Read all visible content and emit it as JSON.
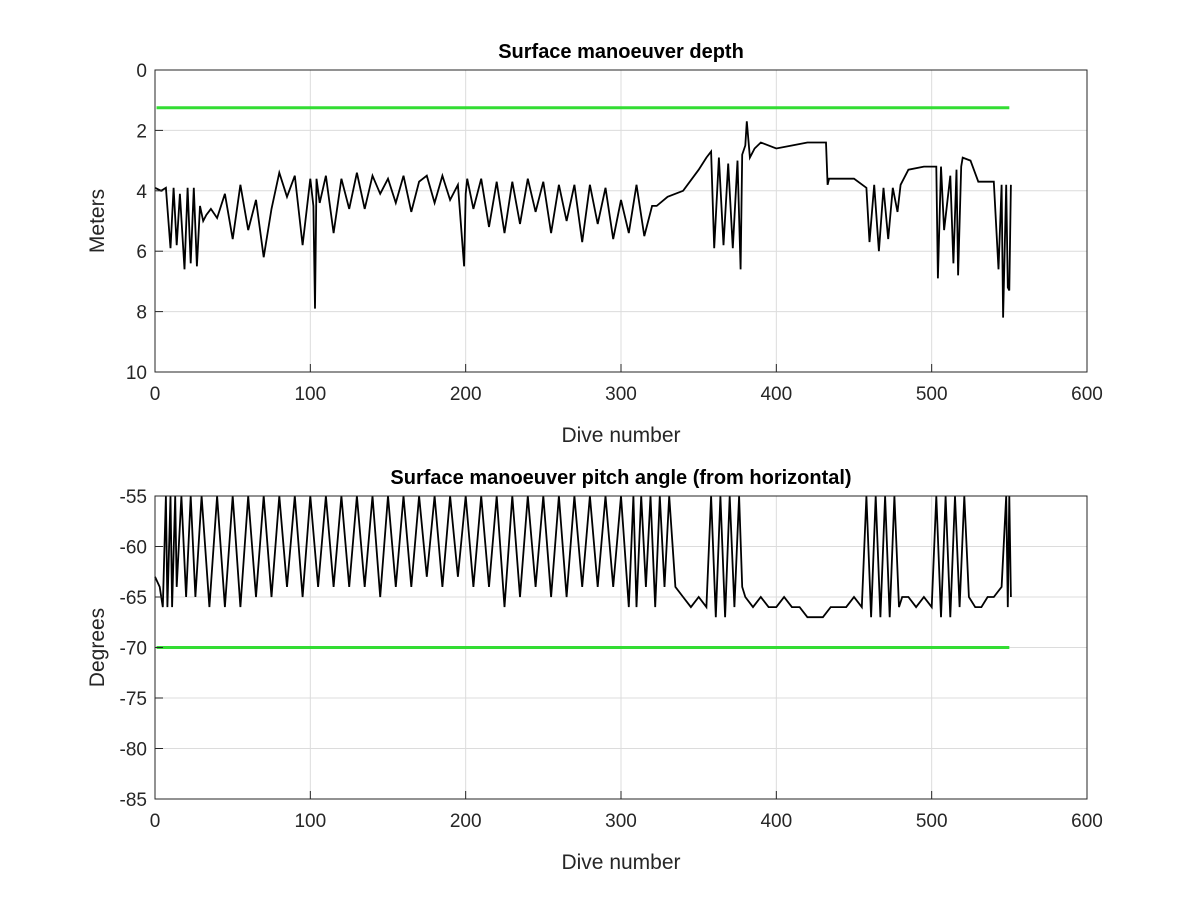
{
  "chart_data": [
    {
      "type": "line",
      "title": "Surface manoeuver depth",
      "xlabel": "Dive number",
      "ylabel": "Meters",
      "xlim": [
        0,
        600
      ],
      "ylim": [
        0,
        10
      ],
      "y_reversed": true,
      "grid": true,
      "x_ticks": [
        "0",
        "100",
        "200",
        "300",
        "400",
        "500",
        "600"
      ],
      "y_ticks": [
        "0",
        "2",
        "4",
        "6",
        "8",
        "10"
      ],
      "threshold": {
        "value": 1.25,
        "x_range": [
          1,
          550
        ],
        "color": "#33dd33"
      },
      "series": [
        {
          "color": "#000000",
          "x": [
            0,
            4,
            7,
            10,
            12,
            14,
            16,
            19,
            21,
            23,
            25,
            27,
            29,
            31,
            33,
            36,
            40,
            45,
            50,
            55,
            60,
            65,
            70,
            75,
            80,
            85,
            90,
            95,
            100,
            102,
            103,
            104,
            106,
            110,
            115,
            120,
            125,
            130,
            135,
            140,
            145,
            150,
            155,
            160,
            165,
            170,
            175,
            180,
            185,
            190,
            195,
            199,
            200,
            201,
            205,
            210,
            215,
            220,
            225,
            230,
            235,
            240,
            245,
            250,
            255,
            260,
            265,
            270,
            275,
            280,
            285,
            290,
            295,
            300,
            305,
            310,
            315,
            320,
            323,
            330,
            340,
            350,
            355,
            358,
            360,
            363,
            366,
            369,
            372,
            375,
            377,
            378,
            380,
            381,
            383,
            386,
            390,
            400,
            410,
            420,
            432,
            433,
            434,
            440,
            450,
            458,
            460,
            463,
            466,
            469,
            472,
            475,
            478,
            480,
            485,
            495,
            503,
            504,
            506,
            508,
            512,
            514,
            516,
            517,
            519,
            520,
            525,
            530,
            535,
            540,
            543,
            545,
            546,
            548,
            549,
            550,
            551
          ],
          "y": [
            3.9,
            4.0,
            3.9,
            5.9,
            3.9,
            5.8,
            4.1,
            6.6,
            3.9,
            6.4,
            3.9,
            6.5,
            4.5,
            5.0,
            4.8,
            4.6,
            4.9,
            4.1,
            5.6,
            3.8,
            5.3,
            4.3,
            6.2,
            4.6,
            3.4,
            4.2,
            3.5,
            5.8,
            3.6,
            4.5,
            7.9,
            3.6,
            4.4,
            3.5,
            5.4,
            3.6,
            4.6,
            3.4,
            4.6,
            3.5,
            4.1,
            3.6,
            4.4,
            3.5,
            4.7,
            3.7,
            3.5,
            4.4,
            3.5,
            4.3,
            3.8,
            6.5,
            4.1,
            3.6,
            4.6,
            3.6,
            5.2,
            3.7,
            5.4,
            3.7,
            5.1,
            3.6,
            4.7,
            3.7,
            5.4,
            3.8,
            5.0,
            3.8,
            5.7,
            3.8,
            5.1,
            3.9,
            5.6,
            4.3,
            5.4,
            3.8,
            5.5,
            4.5,
            4.5,
            4.2,
            4.0,
            3.3,
            2.9,
            2.7,
            5.9,
            2.9,
            5.8,
            3.1,
            5.9,
            3.0,
            6.6,
            2.8,
            2.5,
            1.7,
            2.9,
            2.6,
            2.4,
            2.6,
            2.5,
            2.4,
            2.4,
            3.8,
            3.6,
            3.6,
            3.6,
            3.9,
            5.7,
            3.8,
            6.0,
            3.9,
            5.6,
            3.9,
            4.7,
            3.8,
            3.3,
            3.2,
            3.2,
            6.9,
            3.2,
            5.3,
            3.5,
            6.4,
            3.3,
            6.8,
            3.2,
            2.9,
            3.0,
            3.7,
            3.7,
            3.7,
            6.6,
            3.8,
            8.2,
            3.8,
            7.2,
            7.3,
            3.8
          ]
        }
      ]
    },
    {
      "type": "line",
      "title": "Surface manoeuver pitch angle (from horizontal)",
      "xlabel": "Dive number",
      "ylabel": "Degrees",
      "xlim": [
        0,
        600
      ],
      "ylim": [
        -85,
        -55
      ],
      "grid": true,
      "x_ticks": [
        "0",
        "100",
        "200",
        "300",
        "400",
        "500",
        "600"
      ],
      "y_ticks": [
        "-55",
        "-60",
        "-65",
        "-70",
        "-75",
        "-80",
        "-85"
      ],
      "threshold": {
        "value": -70,
        "x_range": [
          1,
          550
        ],
        "color": "#33dd33"
      },
      "series": [
        {
          "color": "#000000",
          "x": [
            0,
            3,
            5,
            7,
            8,
            10,
            11,
            13,
            14,
            17,
            20,
            23,
            26,
            30,
            35,
            40,
            45,
            50,
            55,
            60,
            65,
            70,
            75,
            80,
            85,
            90,
            95,
            100,
            105,
            110,
            115,
            120,
            125,
            130,
            135,
            140,
            145,
            150,
            155,
            160,
            165,
            170,
            175,
            180,
            185,
            190,
            195,
            200,
            205,
            210,
            215,
            220,
            225,
            230,
            235,
            240,
            245,
            250,
            255,
            260,
            265,
            270,
            275,
            280,
            285,
            290,
            295,
            300,
            305,
            308,
            310,
            313,
            316,
            319,
            322,
            325,
            328,
            331,
            335,
            340,
            345,
            350,
            355,
            358,
            361,
            364,
            367,
            370,
            373,
            376,
            378,
            380,
            385,
            390,
            395,
            400,
            405,
            410,
            415,
            420,
            425,
            430,
            435,
            440,
            445,
            450,
            455,
            458,
            461,
            464,
            467,
            470,
            473,
            476,
            479,
            481,
            485,
            490,
            495,
            500,
            503,
            506,
            509,
            512,
            515,
            518,
            521,
            524,
            528,
            532,
            536,
            540,
            545,
            548,
            549,
            550,
            551
          ],
          "y": [
            -63,
            -64,
            -66,
            -55,
            -66,
            -55,
            -66,
            -55,
            -64,
            -55,
            -65,
            -55,
            -65,
            -55,
            -66,
            -55,
            -66,
            -55,
            -66,
            -55,
            -65,
            -55,
            -65,
            -55,
            -64,
            -55,
            -65,
            -55,
            -64,
            -55,
            -64,
            -55,
            -64,
            -55,
            -64,
            -55,
            -65,
            -55,
            -64,
            -55,
            -64,
            -55,
            -63,
            -55,
            -64,
            -55,
            -63,
            -55,
            -64,
            -55,
            -64,
            -55,
            -66,
            -55,
            -65,
            -55,
            -64,
            -55,
            -65,
            -55,
            -65,
            -55,
            -64,
            -55,
            -64,
            -55,
            -64,
            -55,
            -66,
            -55,
            -66,
            -55,
            -64,
            -55,
            -66,
            -55,
            -64,
            -55,
            -64,
            -65,
            -66,
            -65,
            -66,
            -55,
            -67,
            -55,
            -67,
            -55,
            -66,
            -55,
            -64,
            -65,
            -66,
            -65,
            -66,
            -66,
            -65,
            -66,
            -66,
            -67,
            -67,
            -67,
            -66,
            -66,
            -66,
            -65,
            -66,
            -55,
            -67,
            -55,
            -67,
            -55,
            -67,
            -55,
            -66,
            -65,
            -65,
            -66,
            -65,
            -66,
            -55,
            -67,
            -55,
            -67,
            -55,
            -66,
            -55,
            -65,
            -66,
            -66,
            -65,
            -65,
            -64,
            -55,
            -66,
            -55,
            -65
          ]
        }
      ]
    }
  ]
}
